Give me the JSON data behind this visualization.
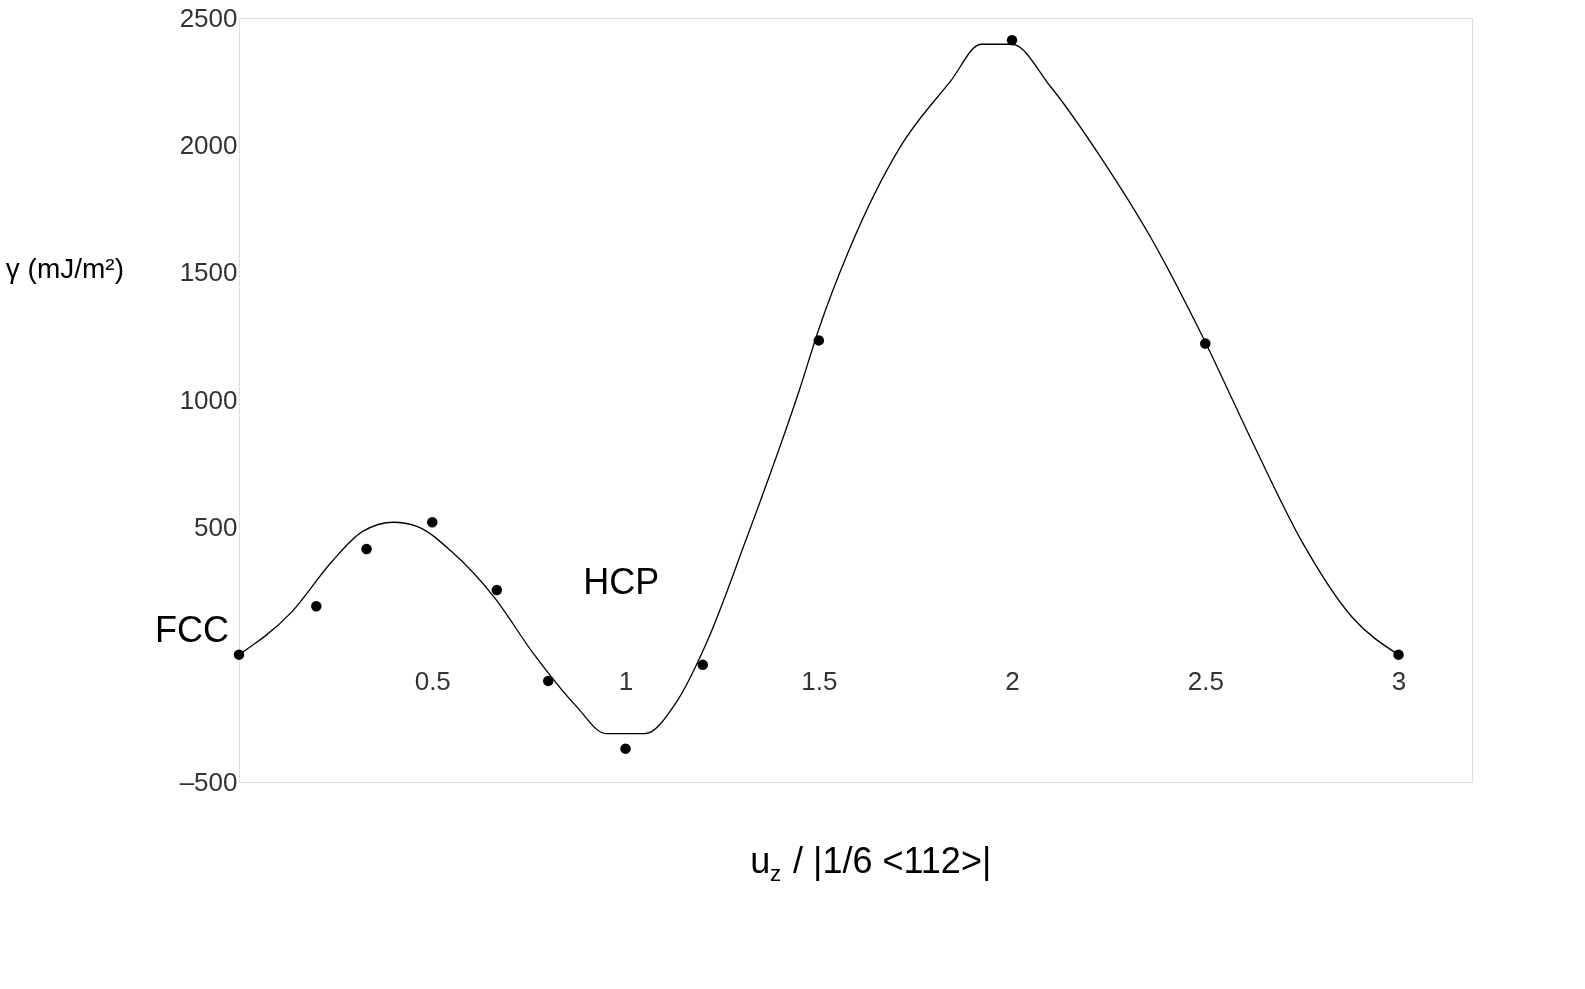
{
  "chart_data": {
    "type": "line",
    "xlabel": "u$_{z}$ / |1/6 <112>|",
    "ylabel": "γ (mJ/m²)",
    "xlim": [
      0,
      3.19
    ],
    "ylim": [
      -500,
      2500
    ],
    "xticks": [
      0.5,
      1,
      1.5,
      2,
      2.5,
      3
    ],
    "yticks": [
      {
        "value": -500,
        "label": "–500"
      },
      500,
      1000,
      1500,
      2000,
      2500
    ],
    "grid": false,
    "series": [
      {
        "color": "#000000",
        "marker": "none",
        "x": [
          0,
          0.136,
          0.24,
          0.32,
          0.4,
          0.46,
          0.55,
          0.66,
          0.76,
          0.87,
          0.95,
          1.05,
          1.13,
          1.21,
          1.31,
          1.45,
          1.5,
          1.58,
          1.71,
          1.84,
          1.92,
          2.0,
          2.1,
          2.23,
          2.36,
          2.49,
          2.62,
          2.75,
          2.88,
          3
        ],
        "values": [
          0,
          167,
          365,
          484,
          520,
          504,
          405,
          226,
          8,
          -198,
          -310,
          -310,
          -190,
          48,
          444,
          1040,
          1278,
          1595,
          1992,
          2250,
          2397,
          2397,
          2230,
          1952,
          1635,
          1258,
          841,
          444,
          147,
          0
        ]
      },
      {
        "type": "scatter",
        "color": "#000000",
        "marker": "circle",
        "x": [
          0,
          0.2,
          0.33,
          0.5,
          0.667,
          0.8,
          1,
          1.2,
          1.5,
          2,
          2.5,
          3
        ],
        "values": [
          0,
          190,
          415,
          520,
          254,
          -103,
          -369,
          -40,
          1234,
          2413,
          1222,
          0
        ]
      }
    ],
    "annotations": [
      {
        "text": "FCC",
        "x": 0,
        "y": 0
      },
      "HCP"
    ]
  }
}
